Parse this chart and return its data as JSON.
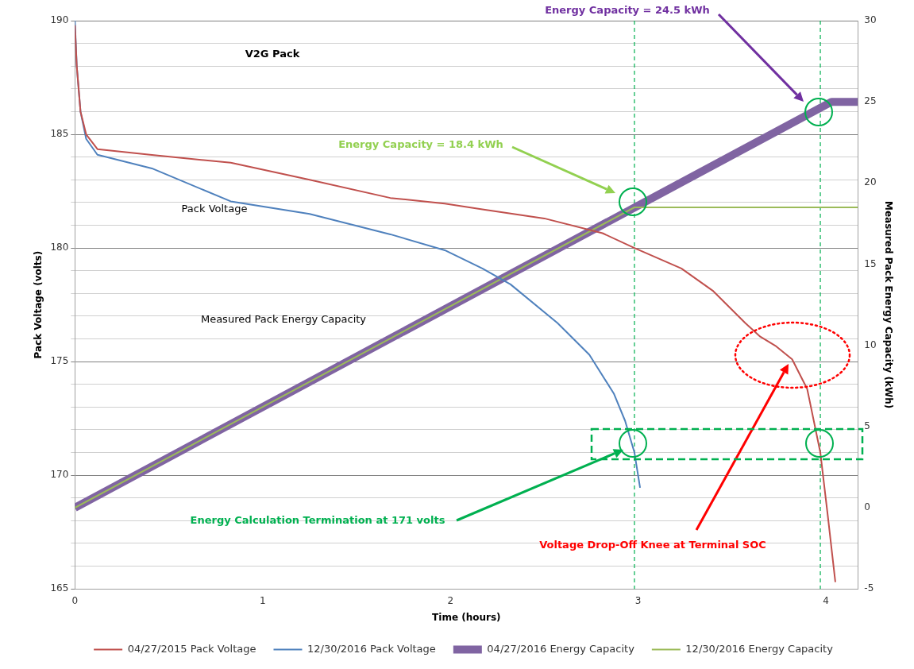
{
  "chart_data": {
    "type": "line",
    "title": "V2G Pack",
    "xlabel": "Time (hours)",
    "ylabel": "Pack Voltage (volts)",
    "y2label": "Measured Pack Energy Capacity (kWh)",
    "xlim": [
      0,
      4.17
    ],
    "xticks": [
      0,
      1,
      2,
      3,
      4
    ],
    "ylim": [
      165,
      190
    ],
    "yticks": [
      165,
      {
        "value": 166,
        "label": null
      },
      {
        "value": 167,
        "label": null
      },
      {
        "value": 168,
        "label": null
      },
      {
        "value": 169,
        "label": null
      },
      170,
      {
        "value": 171,
        "label": null
      },
      {
        "value": 172,
        "label": null
      },
      {
        "value": 173,
        "label": null
      },
      {
        "value": 174,
        "label": null
      },
      175,
      {
        "value": 176,
        "label": null
      },
      {
        "value": 177,
        "label": null
      },
      {
        "value": 178,
        "label": null
      },
      {
        "value": 179,
        "label": null
      },
      180,
      {
        "value": 181,
        "label": null
      },
      {
        "value": 182,
        "label": null
      },
      {
        "value": 183,
        "label": null
      },
      {
        "value": 184,
        "label": null
      },
      185,
      {
        "value": 186,
        "label": null
      },
      {
        "value": 187,
        "label": null
      },
      {
        "value": 188,
        "label": null
      },
      {
        "value": 189,
        "label": null
      },
      190
    ],
    "y2lim": [
      -5,
      30
    ],
    "y2ticks": [
      -5,
      0,
      5,
      10,
      15,
      20,
      25,
      30
    ],
    "grid": "y",
    "legend": "bottom",
    "marker": "none",
    "line_style": "solid",
    "series": [
      {
        "name": "04/27/2015 Pack Voltage",
        "color": "#c0504d",
        "x": [
          0,
          0.01,
          0.03,
          0.06,
          0.12,
          0.4,
          0.83,
          1.25,
          1.68,
          1.97,
          2.17,
          2.5,
          2.81,
          2.98,
          3.23,
          3.4,
          3.57,
          3.65,
          3.73,
          3.82,
          3.9,
          3.97,
          4.01,
          4.05
        ],
        "values": [
          189.8,
          188,
          186,
          185,
          184.35,
          184.1,
          183.75,
          183,
          182.2,
          181.95,
          181.7,
          181.3,
          180.65,
          180,
          179.1,
          178.1,
          176.7,
          176.1,
          175.7,
          175.1,
          173.8,
          171,
          168.2,
          165.3
        ]
      },
      {
        "name": "12/30/2016 Pack Voltage",
        "color": "#4f81bd",
        "x": [
          0,
          0.01,
          0.03,
          0.06,
          0.12,
          0.41,
          0.83,
          1.25,
          1.68,
          1.97,
          2.17,
          2.32,
          2.57,
          2.74,
          2.87,
          2.93,
          2.98,
          3.01
        ],
        "values": [
          190,
          188,
          186,
          184.8,
          184.1,
          183.5,
          182.05,
          181.5,
          180.6,
          179.9,
          179.1,
          178.4,
          176.7,
          175.3,
          173.6,
          172.4,
          171,
          169.45
        ]
      },
      {
        "name": "04/27/2016 Energy Capacity",
        "color": "#8064a2",
        "axis": "y2",
        "x": [
          0,
          4.03,
          4.17
        ],
        "values": [
          0,
          25,
          25
        ]
      },
      {
        "name": "12/30/2016 Energy Capacity",
        "color": "#9bbb59",
        "axis": "y2",
        "x": [
          0,
          2.98,
          4.17
        ],
        "values": [
          0,
          18.5,
          18.5
        ]
      }
    ],
    "ref_lines": [
      {
        "axis": "x",
        "value": 2.98,
        "color": "#00b050",
        "line_style": "dashed"
      },
      {
        "axis": "x",
        "value": 3.97,
        "color": "#00b050",
        "line_style": "dashed"
      }
    ],
    "annotations": [
      "Pack Voltage",
      "Measured Pack Energy Capacity",
      "Energy Capacity = 24.5 kWh",
      "Energy Capacity = 18.4 kWh",
      "Energy Calculation Termination at 171 volts",
      "Voltage Drop-Off Knee at Terminal SOC"
    ]
  }
}
